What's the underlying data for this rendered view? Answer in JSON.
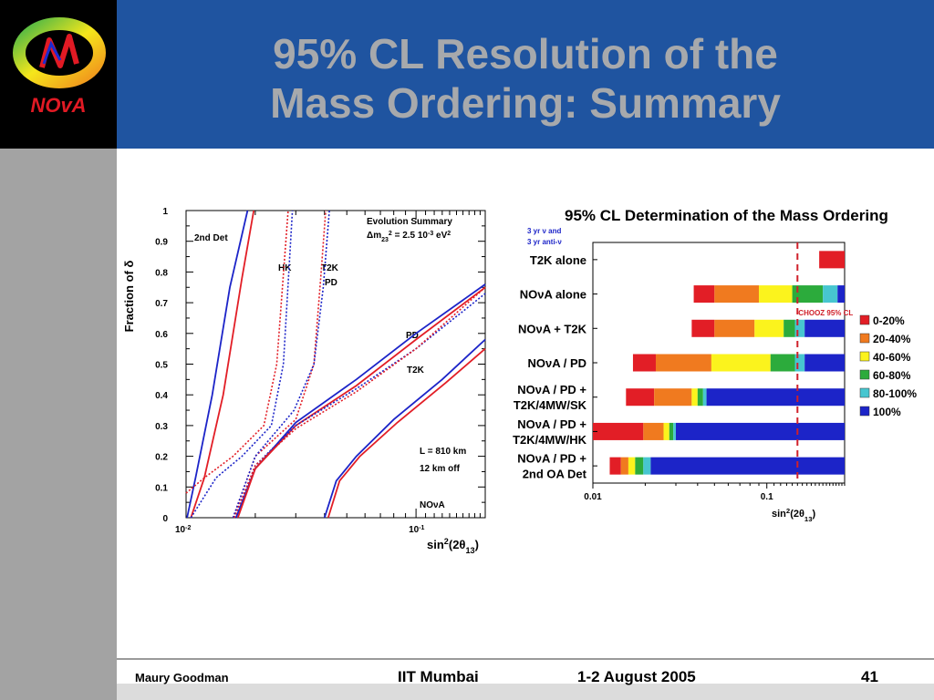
{
  "slide": {
    "title_line1": "95% CL Resolution of the",
    "title_line2": "Mass Ordering: Summary",
    "footer": {
      "author": "Maury Goodman",
      "venue": "IIT Mumbai",
      "date": "1-2 August 2005",
      "page": "41"
    },
    "logo_text": "NOvA"
  },
  "colors": {
    "header_bg": "#1f54a0",
    "title": "#a7a9ac",
    "sidebar": "#a3a3a3",
    "red": "#e21e26",
    "orange": "#f07a1f",
    "yellow": "#fbf31d",
    "green": "#2cab3c",
    "cyan": "#47c6d0",
    "blue": "#1c24c8"
  },
  "chart_data": [
    {
      "type": "line",
      "title": "",
      "xlabel": "sin²(2θ₁₃)",
      "ylabel": "Fraction of δ",
      "xscale": "log",
      "xlim": [
        0.01,
        0.2
      ],
      "ylim": [
        0,
        1
      ],
      "x_tick_labels": [
        "10-2",
        "10-1"
      ],
      "y_tick_labels": [
        "0",
        "0.1",
        "0.2",
        "0.3",
        "0.4",
        "0.5",
        "0.6",
        "0.7",
        "0.8",
        "0.9",
        "1"
      ],
      "legend": {
        "title": "Evolution Summary",
        "line2": "Δm₂₃² = 2.5 10-3 eV²"
      },
      "annotations": [
        "2nd Det",
        "HK",
        "T2K",
        "PD",
        "PD",
        "T2K",
        "L = 810 km",
        "12 km off",
        "NOνA"
      ],
      "series": [
        {
          "color": "#e21e26",
          "style": "solid",
          "points": [
            [
              0.0105,
              0
            ],
            [
              0.012,
              0.13
            ],
            [
              0.0145,
              0.4
            ],
            [
              0.0175,
              0.78
            ],
            [
              0.0197,
              1
            ]
          ]
        },
        {
          "color": "#1c24c8",
          "style": "solid",
          "points": [
            [
              0.0101,
              0
            ],
            [
              0.011,
              0.13
            ],
            [
              0.013,
              0.4
            ],
            [
              0.0155,
              0.75
            ],
            [
              0.0185,
              1
            ]
          ]
        },
        {
          "color": "#1c24c8",
          "style": "dotted",
          "points": [
            [
              0.0105,
              0
            ],
            [
              0.0135,
              0.13
            ],
            [
              0.0175,
              0.2
            ],
            [
              0.0235,
              0.3
            ],
            [
              0.0265,
              0.5
            ],
            [
              0.029,
              1
            ]
          ]
        },
        {
          "color": "#e21e26",
          "style": "dotted",
          "points": [
            [
              0.01,
              0.08
            ],
            [
              0.012,
              0.13
            ],
            [
              0.016,
              0.2
            ],
            [
              0.0218,
              0.3
            ],
            [
              0.0248,
              0.5
            ],
            [
              0.0278,
              1
            ]
          ]
        },
        {
          "color": "#e21e26",
          "style": "dotted",
          "points": [
            [
              0.016,
              0
            ],
            [
              0.02,
              0.2
            ],
            [
              0.03,
              0.32
            ],
            [
              0.036,
              0.5
            ],
            [
              0.0385,
              0.78
            ],
            [
              0.0405,
              1
            ]
          ]
        },
        {
          "color": "#1c24c8",
          "style": "dotted",
          "points": [
            [
              0.016,
              0
            ],
            [
              0.02,
              0.2
            ],
            [
              0.0295,
              0.35
            ],
            [
              0.036,
              0.5
            ],
            [
              0.0395,
              0.75
            ],
            [
              0.042,
              1
            ]
          ]
        },
        {
          "color": "#1c24c8",
          "style": "solid",
          "points": [
            [
              0.0165,
              0
            ],
            [
              0.02,
              0.16
            ],
            [
              0.03,
              0.31
            ],
            [
              0.055,
              0.45
            ],
            [
              0.1,
              0.6
            ],
            [
              0.2,
              0.76
            ]
          ]
        },
        {
          "color": "#e21e26",
          "style": "solid",
          "points": [
            [
              0.0168,
              0
            ],
            [
              0.02,
              0.16
            ],
            [
              0.03,
              0.3
            ],
            [
              0.055,
              0.43
            ],
            [
              0.1,
              0.58
            ],
            [
              0.2,
              0.75
            ]
          ]
        },
        {
          "color": "#1c24c8",
          "style": "dotted",
          "points": [
            [
              0.0162,
              0
            ],
            [
              0.02,
              0.17
            ],
            [
              0.03,
              0.3
            ],
            [
              0.055,
              0.42
            ],
            [
              0.1,
              0.55
            ],
            [
              0.2,
              0.73
            ]
          ]
        },
        {
          "color": "#e21e26",
          "style": "dotted",
          "points": [
            [
              0.0162,
              0
            ],
            [
              0.02,
              0.17
            ],
            [
              0.03,
              0.29
            ],
            [
              0.055,
              0.41
            ],
            [
              0.1,
              0.55
            ],
            [
              0.2,
              0.75
            ]
          ]
        },
        {
          "color": "#1c24c8",
          "style": "solid",
          "points": [
            [
              0.04,
              0
            ],
            [
              0.045,
              0.12
            ],
            [
              0.055,
              0.2
            ],
            [
              0.08,
              0.32
            ],
            [
              0.13,
              0.45
            ],
            [
              0.2,
              0.58
            ]
          ]
        },
        {
          "color": "#e21e26",
          "style": "solid",
          "points": [
            [
              0.0415,
              0
            ],
            [
              0.0465,
              0.12
            ],
            [
              0.057,
              0.2
            ],
            [
              0.083,
              0.31
            ],
            [
              0.135,
              0.44
            ],
            [
              0.2,
              0.55
            ]
          ]
        }
      ]
    },
    {
      "type": "bar",
      "title": "95% CL Determination of the Mass Ordering",
      "subtitle": [
        "3 yr ν and",
        "3 yr anti-ν"
      ],
      "xlabel": "sin²(2θ₁₃)",
      "xscale": "log",
      "xlim": [
        0.01,
        0.28
      ],
      "x_tick_labels": [
        "0.01",
        "0.1"
      ],
      "reference_line": {
        "label": "CHOOZ 95% CL",
        "x": 0.15
      },
      "legend": [
        {
          "label": "0-20%",
          "color": "#e21e26"
        },
        {
          "label": "20-40%",
          "color": "#f07a1f"
        },
        {
          "label": "40-60%",
          "color": "#fbf31d"
        },
        {
          "label": "60-80%",
          "color": "#2cab3c"
        },
        {
          "label": "80-100%",
          "color": "#47c6d0"
        },
        {
          "label": "100%",
          "color": "#1c24c8"
        }
      ],
      "categories": [
        "T2K alone",
        "NOνA alone",
        "NOνA + T2K",
        "NOνA / PD",
        "NOνA / PD +\nT2K/4MW/SK",
        "NOνA / PD +\nT2K/4MW/HK",
        "NOνA / PD +\n2nd OA Det"
      ],
      "rows": [
        {
          "edges": [
            0.2,
            0.28
          ],
          "colors": [
            "#e21e26"
          ]
        },
        {
          "edges": [
            0.038,
            0.05,
            0.09,
            0.14,
            0.21,
            0.255,
            0.28
          ],
          "colors": [
            "#e21e26",
            "#f07a1f",
            "#fbf31d",
            "#2cab3c",
            "#47c6d0",
            "#1c24c8"
          ]
        },
        {
          "edges": [
            0.037,
            0.05,
            0.085,
            0.125,
            0.145,
            0.165,
            0.28
          ],
          "colors": [
            "#e21e26",
            "#f07a1f",
            "#fbf31d",
            "#2cab3c",
            "#47c6d0",
            "#1c24c8"
          ]
        },
        {
          "edges": [
            0.017,
            0.023,
            0.048,
            0.105,
            0.145,
            0.165,
            0.28
          ],
          "colors": [
            "#e21e26",
            "#f07a1f",
            "#fbf31d",
            "#2cab3c",
            "#47c6d0",
            "#1c24c8"
          ]
        },
        {
          "edges": [
            0.0155,
            0.0225,
            0.037,
            0.04,
            0.043,
            0.045,
            0.28
          ],
          "colors": [
            "#e21e26",
            "#f07a1f",
            "#fbf31d",
            "#2cab3c",
            "#47c6d0",
            "#1c24c8"
          ]
        },
        {
          "edges": [
            0.01,
            0.0195,
            0.0255,
            0.0275,
            0.029,
            0.03,
            0.28
          ],
          "colors": [
            "#e21e26",
            "#f07a1f",
            "#fbf31d",
            "#2cab3c",
            "#47c6d0",
            "#1c24c8"
          ]
        },
        {
          "edges": [
            0.0125,
            0.0145,
            0.016,
            0.0175,
            0.0195,
            0.0215,
            0.28
          ],
          "colors": [
            "#e21e26",
            "#f07a1f",
            "#fbf31d",
            "#2cab3c",
            "#47c6d0",
            "#1c24c8"
          ]
        }
      ]
    }
  ]
}
